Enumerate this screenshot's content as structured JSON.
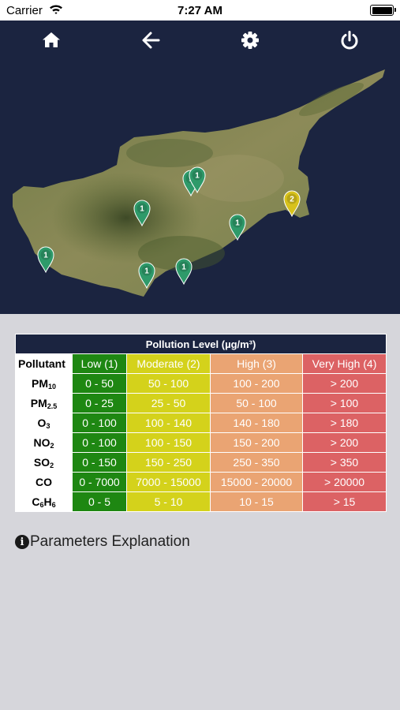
{
  "status_bar": {
    "carrier": "Carrier",
    "time": "7:27 AM"
  },
  "toolbar": {
    "icons": [
      "home-icon",
      "back-arrow-icon",
      "gear-icon",
      "power-icon"
    ]
  },
  "map": {
    "markers": [
      {
        "count": "1",
        "status": "low"
      },
      {
        "count": "1",
        "status": "low"
      },
      {
        "count": "1",
        "status": "low"
      },
      {
        "count": "1",
        "status": "low"
      },
      {
        "count": "1",
        "status": "low"
      },
      {
        "count": "1",
        "status": "low"
      },
      {
        "count": "1",
        "status": "low"
      },
      {
        "count": "2",
        "status": "moderate"
      }
    ],
    "colors": {
      "low": "#2e9a6a",
      "moderate": "#d8c21c"
    }
  },
  "table": {
    "caption": "Pollution Level (µg/m³)",
    "headers": {
      "pollutant": "Pollutant",
      "low": "Low (1)",
      "moderate": "Moderate (2)",
      "high": "High (3)",
      "very_high": "Very High (4)"
    },
    "rows": [
      {
        "name_html": "PM<sub>10</sub>",
        "low": "0 - 50",
        "moderate": "50 - 100",
        "high": "100 - 200",
        "very_high": "> 200"
      },
      {
        "name_html": "PM<sub>2.5</sub>",
        "low": "0 - 25",
        "moderate": "25 - 50",
        "high": "50 - 100",
        "very_high": "> 100"
      },
      {
        "name_html": "O<sub>3</sub>",
        "low": "0 - 100",
        "moderate": "100 - 140",
        "high": "140 - 180",
        "very_high": "> 180"
      },
      {
        "name_html": "NO<sub>2</sub>",
        "low": "0 - 100",
        "moderate": "100 - 150",
        "high": "150 - 200",
        "very_high": "> 200"
      },
      {
        "name_html": "SO<sub>2</sub>",
        "low": "0 - 150",
        "moderate": "150 - 250",
        "high": "250 - 350",
        "very_high": "> 350"
      },
      {
        "name_html": "CO",
        "low": "0 - 7000",
        "moderate": "7000 - 15000",
        "high": "15000 - 20000",
        "very_high": "> 20000"
      },
      {
        "name_html": "C<sub>6</sub>H<sub>6</sub>",
        "low": "0 - 5",
        "moderate": "5 - 10",
        "high": "10 - 15",
        "very_high": "> 15"
      }
    ],
    "colors": {
      "low": "#1e8712",
      "moderate": "#d4d21b",
      "high": "#eaa473",
      "very_high": "#dc6264",
      "caption_bg": "#1b2440"
    }
  },
  "explanation": {
    "label": "Parameters Explanation",
    "icon": "info-icon"
  }
}
